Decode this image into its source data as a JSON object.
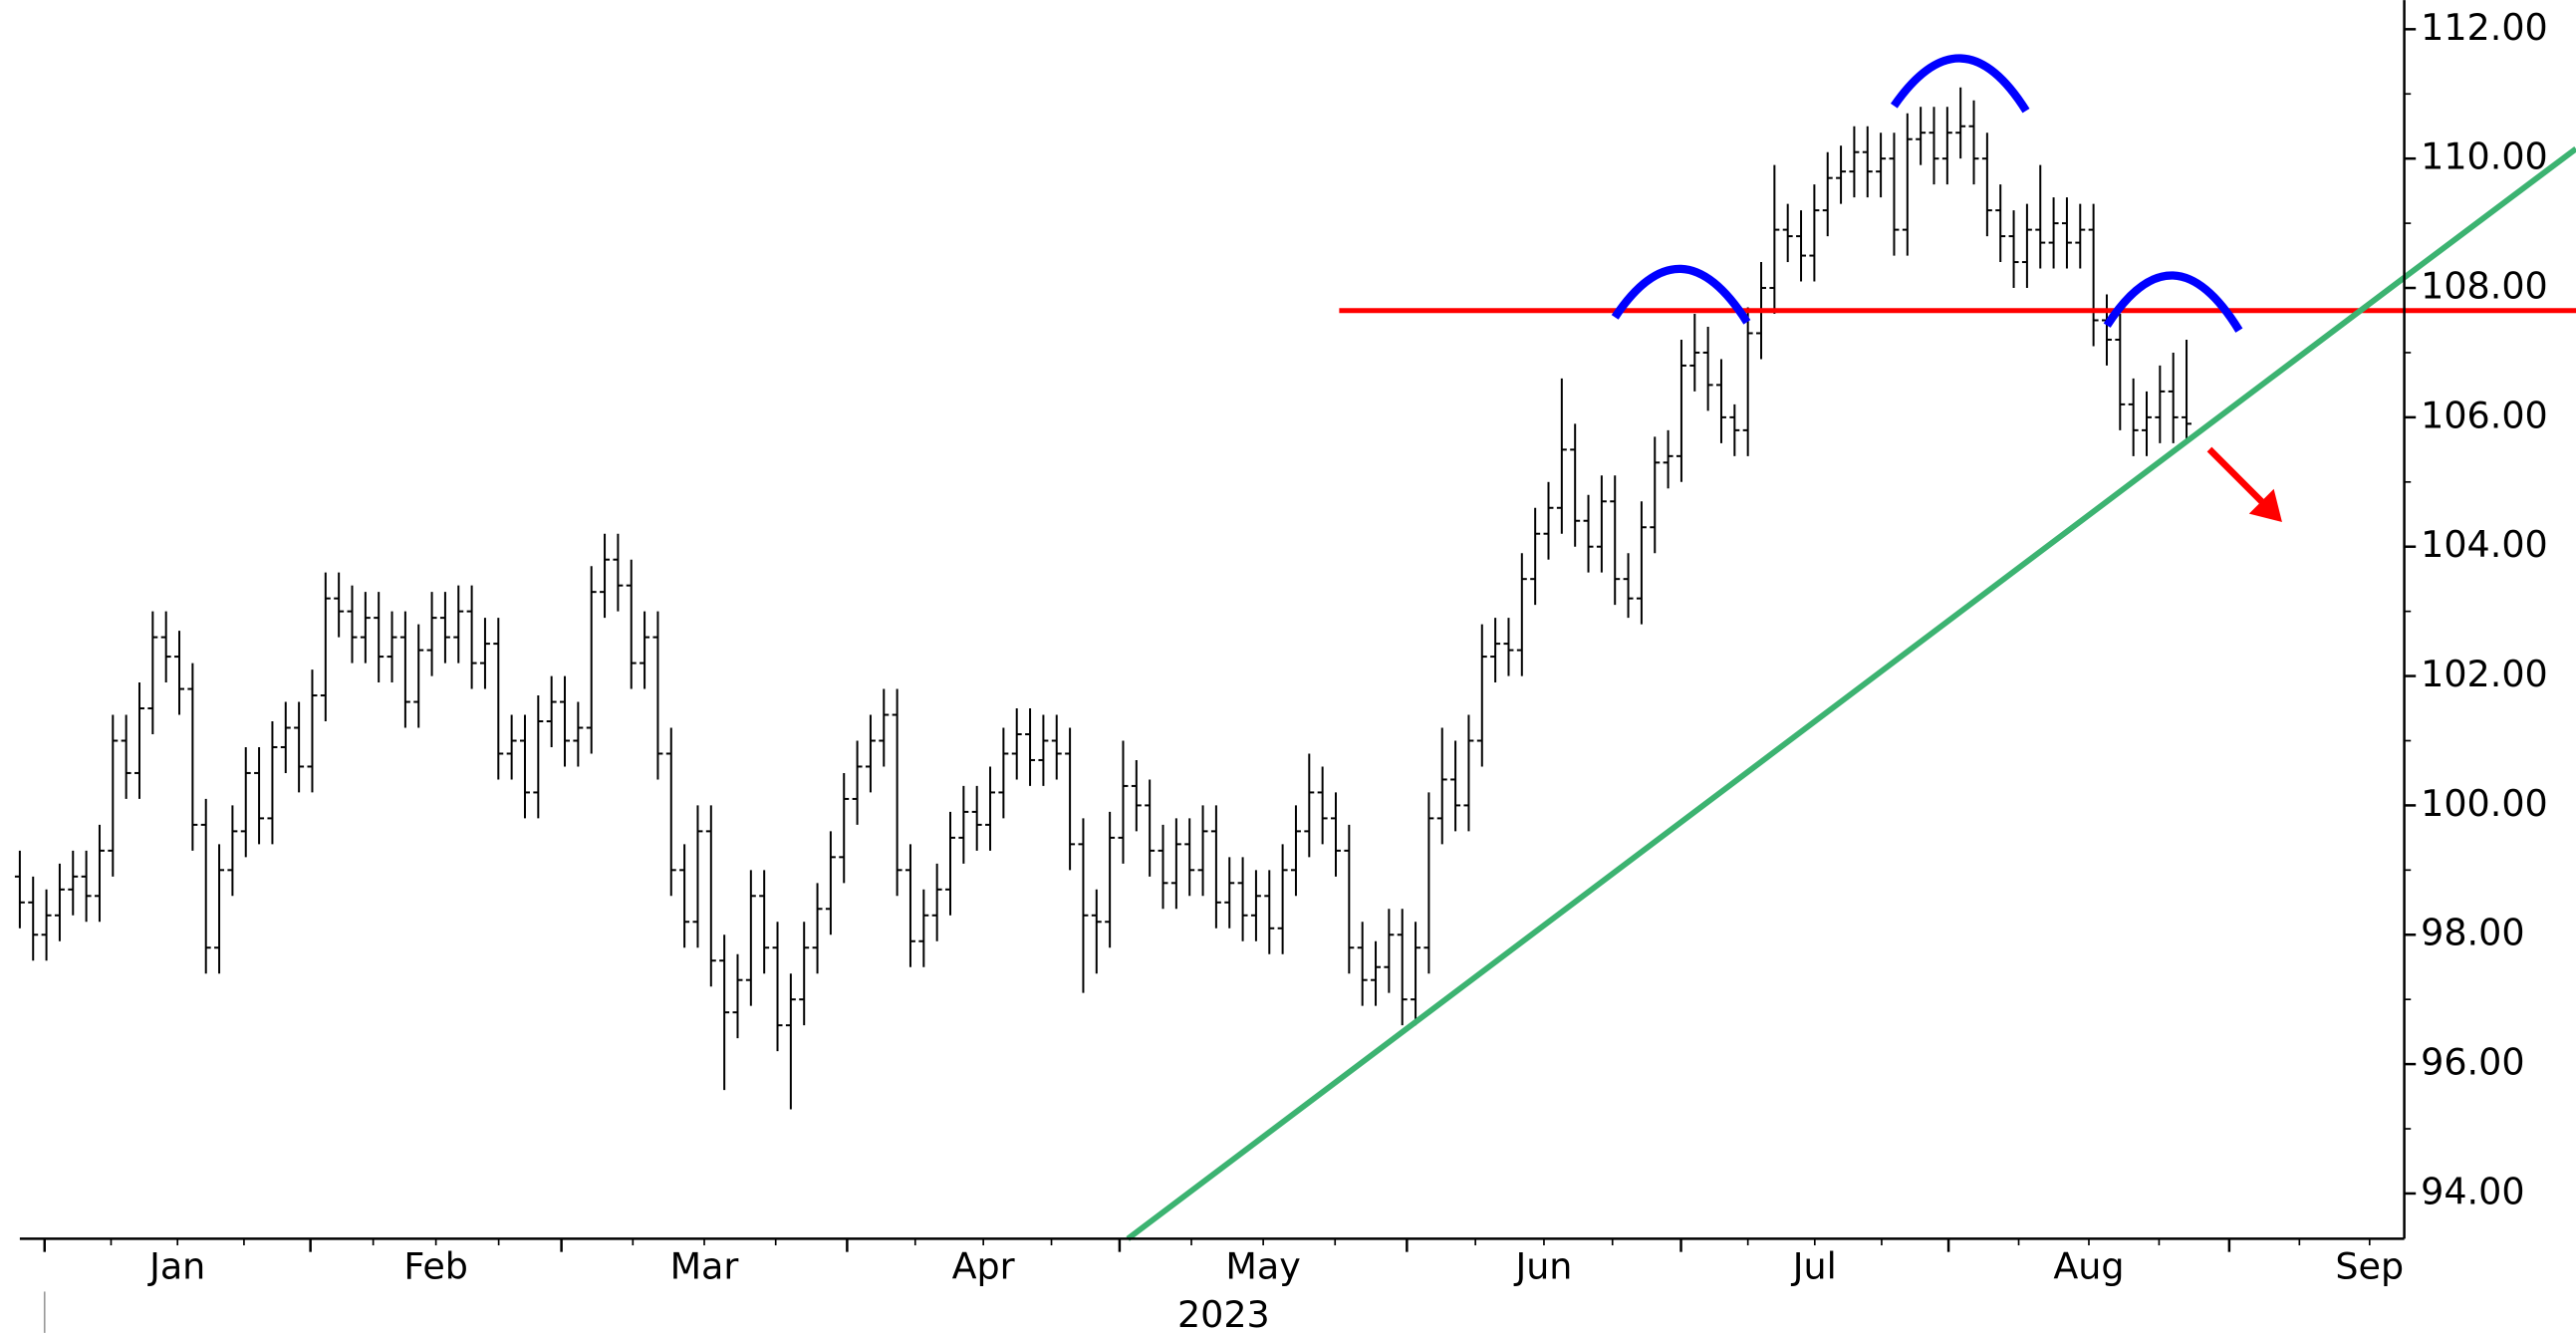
{
  "chart_data": {
    "type": "ohlc",
    "color": "#000000",
    "months": [
      "Jan",
      "Feb",
      "Mar",
      "Apr",
      "May",
      "Jun",
      "Jul",
      "Aug",
      "Sep"
    ],
    "year": "2023",
    "open": [
      98.9,
      98.5,
      98.0,
      98.3,
      98.7,
      98.9,
      98.6,
      99.3,
      101.0,
      100.5,
      101.5,
      102.6,
      102.3,
      101.8,
      99.7,
      97.8,
      99.0,
      99.6,
      100.5,
      99.8,
      100.9,
      101.2,
      100.6,
      101.7,
      103.2,
      103.0,
      102.6,
      102.9,
      102.3,
      102.6,
      101.6,
      102.4,
      102.9,
      102.6,
      103.0,
      102.2,
      102.5,
      100.8,
      101.0,
      100.2,
      101.3,
      101.6,
      101.0,
      101.2,
      103.3,
      103.8,
      103.4,
      102.2,
      102.6,
      100.8,
      99.0,
      98.2,
      99.6,
      97.6,
      96.8,
      97.3,
      98.6,
      97.8,
      96.6,
      97.0,
      97.8,
      98.4,
      99.2,
      100.1,
      100.6,
      101.0,
      101.4,
      99.0,
      97.9,
      98.3,
      98.7,
      99.5,
      99.9,
      99.7,
      100.2,
      100.8,
      101.1,
      100.7,
      101.0,
      100.8,
      99.4,
      98.3,
      98.2,
      99.5,
      100.3,
      100.0,
      99.3,
      98.8,
      99.4,
      99.0,
      99.6,
      98.5,
      98.8,
      98.3,
      98.6,
      98.1,
      99.0,
      99.6,
      100.2,
      99.8,
      99.3,
      97.8,
      97.3,
      97.5,
      98.0,
      97.0,
      97.8,
      99.8,
      100.4,
      100.0,
      101.0,
      102.3,
      102.5,
      102.4,
      103.5,
      104.2,
      104.6,
      105.5,
      104.4,
      104.0,
      104.7,
      103.5,
      103.2,
      104.3,
      105.3,
      105.4,
      106.8,
      107.0,
      106.5,
      106.0,
      105.8,
      107.3,
      108.0,
      108.9,
      108.8,
      108.5,
      109.2,
      109.7,
      109.8,
      110.1,
      109.8,
      110.0,
      108.9,
      110.3,
      110.4,
      110.0,
      110.4,
      110.5,
      110.0,
      109.2,
      108.8,
      108.4,
      108.9,
      108.7,
      109.0,
      108.7,
      108.9,
      107.5,
      107.2,
      106.2,
      105.8,
      106.0,
      106.4,
      106.0
    ],
    "high": [
      99.3,
      98.9,
      98.7,
      99.1,
      99.3,
      99.3,
      99.7,
      101.4,
      101.4,
      101.9,
      103.0,
      103.0,
      102.7,
      102.2,
      100.1,
      99.4,
      100.0,
      100.9,
      100.9,
      101.3,
      101.6,
      101.6,
      102.1,
      103.6,
      103.6,
      103.4,
      103.3,
      103.3,
      103.0,
      103.0,
      102.8,
      103.3,
      103.3,
      103.4,
      103.4,
      102.9,
      102.9,
      101.4,
      101.4,
      101.7,
      102.0,
      102.0,
      101.6,
      103.7,
      104.2,
      104.2,
      103.8,
      103.0,
      103.0,
      101.2,
      99.4,
      100.0,
      100.0,
      98.0,
      97.7,
      99.0,
      99.0,
      98.2,
      97.4,
      98.2,
      98.8,
      99.6,
      100.5,
      101.0,
      101.4,
      101.8,
      101.8,
      99.4,
      98.7,
      99.1,
      99.9,
      100.3,
      100.3,
      100.6,
      101.2,
      101.5,
      101.5,
      101.4,
      101.4,
      101.2,
      99.8,
      98.7,
      99.9,
      101.0,
      100.7,
      100.4,
      99.7,
      99.8,
      99.8,
      100.0,
      100.0,
      99.2,
      99.2,
      99.0,
      99.0,
      99.4,
      100.0,
      100.8,
      100.6,
      100.2,
      99.7,
      98.2,
      97.9,
      98.4,
      98.4,
      98.2,
      100.2,
      101.2,
      101.0,
      101.4,
      102.8,
      102.9,
      102.9,
      103.9,
      104.6,
      105.0,
      106.6,
      105.9,
      104.8,
      105.1,
      105.1,
      103.9,
      104.7,
      105.7,
      105.8,
      107.2,
      107.6,
      107.4,
      106.9,
      106.2,
      107.7,
      108.4,
      109.9,
      109.3,
      109.2,
      109.6,
      110.1,
      110.2,
      110.5,
      110.5,
      110.4,
      110.4,
      110.7,
      110.8,
      110.8,
      110.8,
      111.1,
      110.9,
      110.4,
      109.6,
      109.2,
      109.3,
      109.9,
      109.4,
      109.4,
      109.3,
      109.3,
      107.9,
      107.6,
      106.6,
      106.4,
      106.8,
      107.0,
      107.2
    ],
    "low": [
      98.1,
      97.6,
      97.6,
      97.9,
      98.3,
      98.2,
      98.2,
      98.9,
      100.1,
      100.1,
      101.1,
      101.9,
      101.4,
      99.3,
      97.4,
      97.4,
      98.6,
      99.2,
      99.4,
      99.4,
      100.5,
      100.2,
      100.2,
      101.3,
      102.6,
      102.2,
      102.2,
      101.9,
      101.9,
      101.2,
      101.2,
      102.0,
      102.2,
      102.2,
      101.8,
      101.8,
      100.4,
      100.4,
      99.8,
      99.8,
      100.9,
      100.6,
      100.6,
      100.8,
      102.9,
      103.0,
      101.8,
      101.8,
      100.4,
      98.6,
      97.8,
      97.8,
      97.2,
      95.6,
      96.4,
      96.9,
      97.4,
      96.2,
      95.3,
      96.6,
      97.4,
      98.0,
      98.8,
      99.7,
      100.2,
      100.6,
      98.6,
      97.5,
      97.5,
      97.9,
      98.3,
      99.1,
      99.3,
      99.3,
      99.8,
      100.4,
      100.3,
      100.3,
      100.4,
      99.0,
      97.1,
      97.4,
      97.8,
      99.1,
      99.6,
      98.9,
      98.4,
      98.4,
      98.6,
      98.6,
      98.1,
      98.1,
      97.9,
      97.9,
      97.7,
      97.7,
      98.6,
      99.2,
      99.4,
      98.9,
      97.4,
      96.9,
      96.9,
      97.1,
      96.6,
      96.6,
      97.4,
      99.4,
      99.6,
      99.6,
      100.6,
      101.9,
      102.0,
      102.0,
      103.1,
      103.8,
      104.2,
      104.0,
      103.6,
      103.6,
      103.1,
      102.9,
      102.8,
      103.9,
      104.9,
      105.0,
      106.4,
      106.1,
      105.6,
      105.4,
      105.4,
      106.9,
      107.6,
      108.4,
      108.1,
      108.1,
      108.8,
      109.3,
      109.4,
      109.4,
      109.4,
      108.5,
      108.5,
      109.9,
      109.6,
      109.6,
      110.0,
      109.6,
      108.8,
      108.4,
      108.0,
      108.0,
      108.3,
      108.3,
      108.3,
      108.3,
      107.1,
      106.8,
      105.8,
      105.4,
      105.4,
      105.6,
      105.6,
      105.6
    ],
    "close": [
      98.5,
      98.0,
      98.3,
      98.7,
      98.9,
      98.6,
      99.3,
      101.0,
      100.5,
      101.5,
      102.6,
      102.3,
      101.8,
      99.7,
      97.8,
      99.0,
      99.6,
      100.5,
      99.8,
      100.9,
      101.2,
      100.6,
      101.7,
      103.2,
      103.0,
      102.6,
      102.9,
      102.3,
      102.6,
      101.6,
      102.4,
      102.9,
      102.6,
      103.0,
      102.2,
      102.5,
      100.8,
      101.0,
      100.2,
      101.3,
      101.6,
      101.0,
      101.2,
      103.3,
      103.8,
      103.4,
      102.2,
      102.6,
      100.8,
      99.0,
      98.2,
      99.6,
      97.6,
      96.8,
      97.3,
      98.6,
      97.8,
      96.6,
      97.0,
      97.8,
      98.4,
      99.2,
      100.1,
      100.6,
      101.0,
      101.4,
      99.0,
      97.9,
      98.3,
      98.7,
      99.5,
      99.9,
      99.7,
      100.2,
      100.8,
      101.1,
      100.7,
      101.0,
      100.8,
      99.4,
      98.3,
      98.2,
      99.5,
      100.3,
      100.0,
      99.3,
      98.8,
      99.4,
      99.0,
      99.6,
      98.5,
      98.8,
      98.3,
      98.6,
      98.1,
      99.0,
      99.6,
      100.2,
      99.8,
      99.3,
      97.8,
      97.3,
      97.5,
      98.0,
      97.0,
      97.8,
      99.8,
      100.4,
      100.0,
      101.0,
      102.3,
      102.5,
      102.4,
      103.5,
      104.2,
      104.6,
      105.5,
      104.4,
      104.0,
      104.7,
      103.5,
      103.2,
      104.3,
      105.3,
      105.4,
      106.8,
      107.0,
      106.5,
      106.0,
      105.8,
      107.3,
      108.0,
      108.9,
      108.8,
      108.5,
      109.2,
      109.7,
      109.8,
      110.1,
      109.8,
      110.0,
      108.9,
      110.3,
      110.4,
      110.0,
      110.4,
      110.5,
      110.0,
      109.2,
      108.8,
      108.4,
      108.9,
      108.7,
      109.0,
      108.7,
      108.9,
      107.5,
      107.2,
      106.2,
      105.8,
      106.0,
      106.4,
      106.0,
      105.9
    ],
    "ylim": [
      93.3,
      112.45
    ],
    "yticks": [
      {
        "value": 94,
        "label": "94.00"
      },
      {
        "value": 96,
        "label": "96.00"
      },
      {
        "value": 98,
        "label": "98.00"
      },
      {
        "value": 100,
        "label": "100.00"
      },
      {
        "value": 102,
        "label": "102.00"
      },
      {
        "value": 104,
        "label": "104.00"
      },
      {
        "value": 106,
        "label": "106.00"
      },
      {
        "value": 108,
        "label": "108.00"
      },
      {
        "value": 110,
        "label": "110.00"
      },
      {
        "value": 112,
        "label": "112.00"
      }
    ]
  }
}
